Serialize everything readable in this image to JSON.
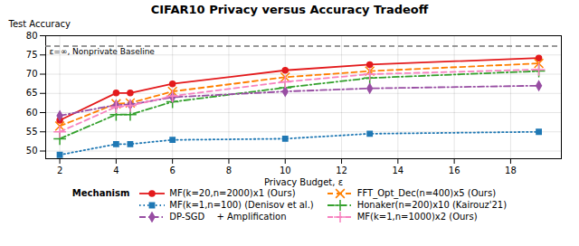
{
  "chart_data": {
    "type": "line",
    "title": "CIFAR10 Privacy versus Accuracy Tradeoff",
    "xlabel": "Privacy Budget, ε",
    "ylabel": "Test Accuracy",
    "xlim": [
      1.5,
      19.8
    ],
    "ylim": [
      48,
      80
    ],
    "xticks": [
      2,
      4,
      6,
      8,
      10,
      12,
      14,
      16,
      18
    ],
    "yticks": [
      50,
      55,
      60,
      65,
      70,
      75,
      80
    ],
    "grid": true,
    "legend": "bottom",
    "legend_title": "Mechanism",
    "reference_lines": [
      {
        "y": 77.3,
        "label": "ε=∞, Nonprivate Baseline",
        "color": "#777777",
        "line_style": "dashed"
      }
    ],
    "series": [
      {
        "name": "MF(k=20,n=2000)x1 (Ours)",
        "color": "#e31a1c",
        "line_style": "solid",
        "marker": "circle",
        "x": [
          2,
          4,
          4.5,
          6,
          10,
          13,
          19
        ],
        "values": [
          58.0,
          65.1,
          65.1,
          67.5,
          71.0,
          72.5,
          74.2
        ]
      },
      {
        "name": "FFT_Opt_Dec(n=400)x5 (Ours)",
        "color": "#ff7f00",
        "line_style": "dashed",
        "marker": "times",
        "x": [
          2,
          4,
          4.5,
          6,
          10,
          13,
          19
        ],
        "values": [
          56.5,
          62.3,
          62.5,
          65.5,
          69.2,
          70.8,
          72.8
        ]
      },
      {
        "name": "MF(k=1,n=100) (Denisov et al.)",
        "color": "#1f78b4",
        "line_style": "dotted",
        "marker": "square",
        "x": [
          2,
          4,
          4.5,
          6,
          10,
          13,
          19
        ],
        "values": [
          49.0,
          51.8,
          51.8,
          52.9,
          53.2,
          54.5,
          55.0
        ]
      },
      {
        "name": "Honaker(n=200)x10 (Kairouz'21)",
        "color": "#33a02c",
        "line_style": "dashdot",
        "marker": "plus",
        "x": [
          2,
          4,
          4.5,
          6,
          10,
          13,
          19
        ],
        "values": [
          53.2,
          59.5,
          59.5,
          62.8,
          66.5,
          69.0,
          70.8
        ]
      },
      {
        "name": "DP-SGD   + Amplification",
        "color": "#984ea3",
        "line_style": "dashdot",
        "marker": "diamond",
        "x": [
          2,
          4,
          4.5,
          6,
          10,
          13,
          19
        ],
        "values": [
          59.2,
          62.0,
          62.1,
          64.0,
          65.5,
          66.3,
          67.0
        ]
      },
      {
        "name": "MF(k=1,n=1000)x2 (Ours)",
        "color": "#f781bf",
        "line_style": "dashed",
        "marker": "plus",
        "x": [
          2,
          4,
          4.5,
          6,
          10,
          13,
          19
        ],
        "values": [
          55.0,
          61.5,
          61.8,
          64.3,
          68.0,
          70.0,
          71.2
        ]
      }
    ]
  }
}
